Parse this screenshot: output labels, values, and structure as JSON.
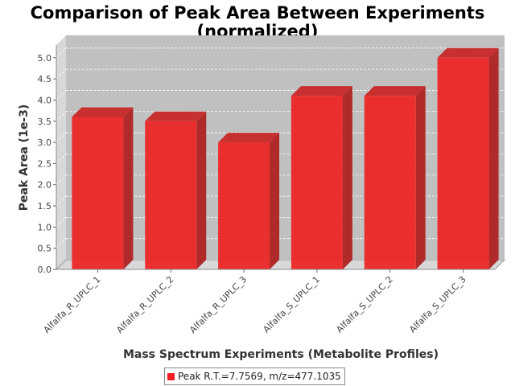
{
  "chart_data": {
    "type": "bar",
    "title": "Comparison of Peak Area Between Experiments",
    "subtitle": "(normalized)",
    "xlabel": "Mass Spectrum Experiments (Metabolite Profiles)",
    "ylabel": "Peak Area (1e-3)",
    "categories": [
      "Alfalfa_R_UPLC_1",
      "Alfalfa_R_UPLC_2",
      "Alfalfa_R_UPLC_3",
      "Alfalfa_S_UPLC_1",
      "Alfalfa_S_UPLC_2",
      "Alfalfa_S_UPLC_3"
    ],
    "series": [
      {
        "name": "Peak R.T.=7.7569, m/z=477.1035",
        "values": [
          3.6,
          3.5,
          3.0,
          4.1,
          4.1,
          5.0
        ],
        "color": "#ee2222"
      }
    ],
    "yticks": [
      "0.0",
      "0.5",
      "1.0",
      "1.5",
      "2.0",
      "2.5",
      "3.0",
      "3.5",
      "4.0",
      "4.5",
      "5.0"
    ],
    "ylim": [
      0,
      5.3
    ],
    "grid": true,
    "legend_position": "bottom",
    "colors": {
      "plot_background": "#c0c0c0",
      "wall": "#d8d8d8",
      "bar_side": "#b02a2a",
      "bar_top": "#c83030"
    }
  }
}
